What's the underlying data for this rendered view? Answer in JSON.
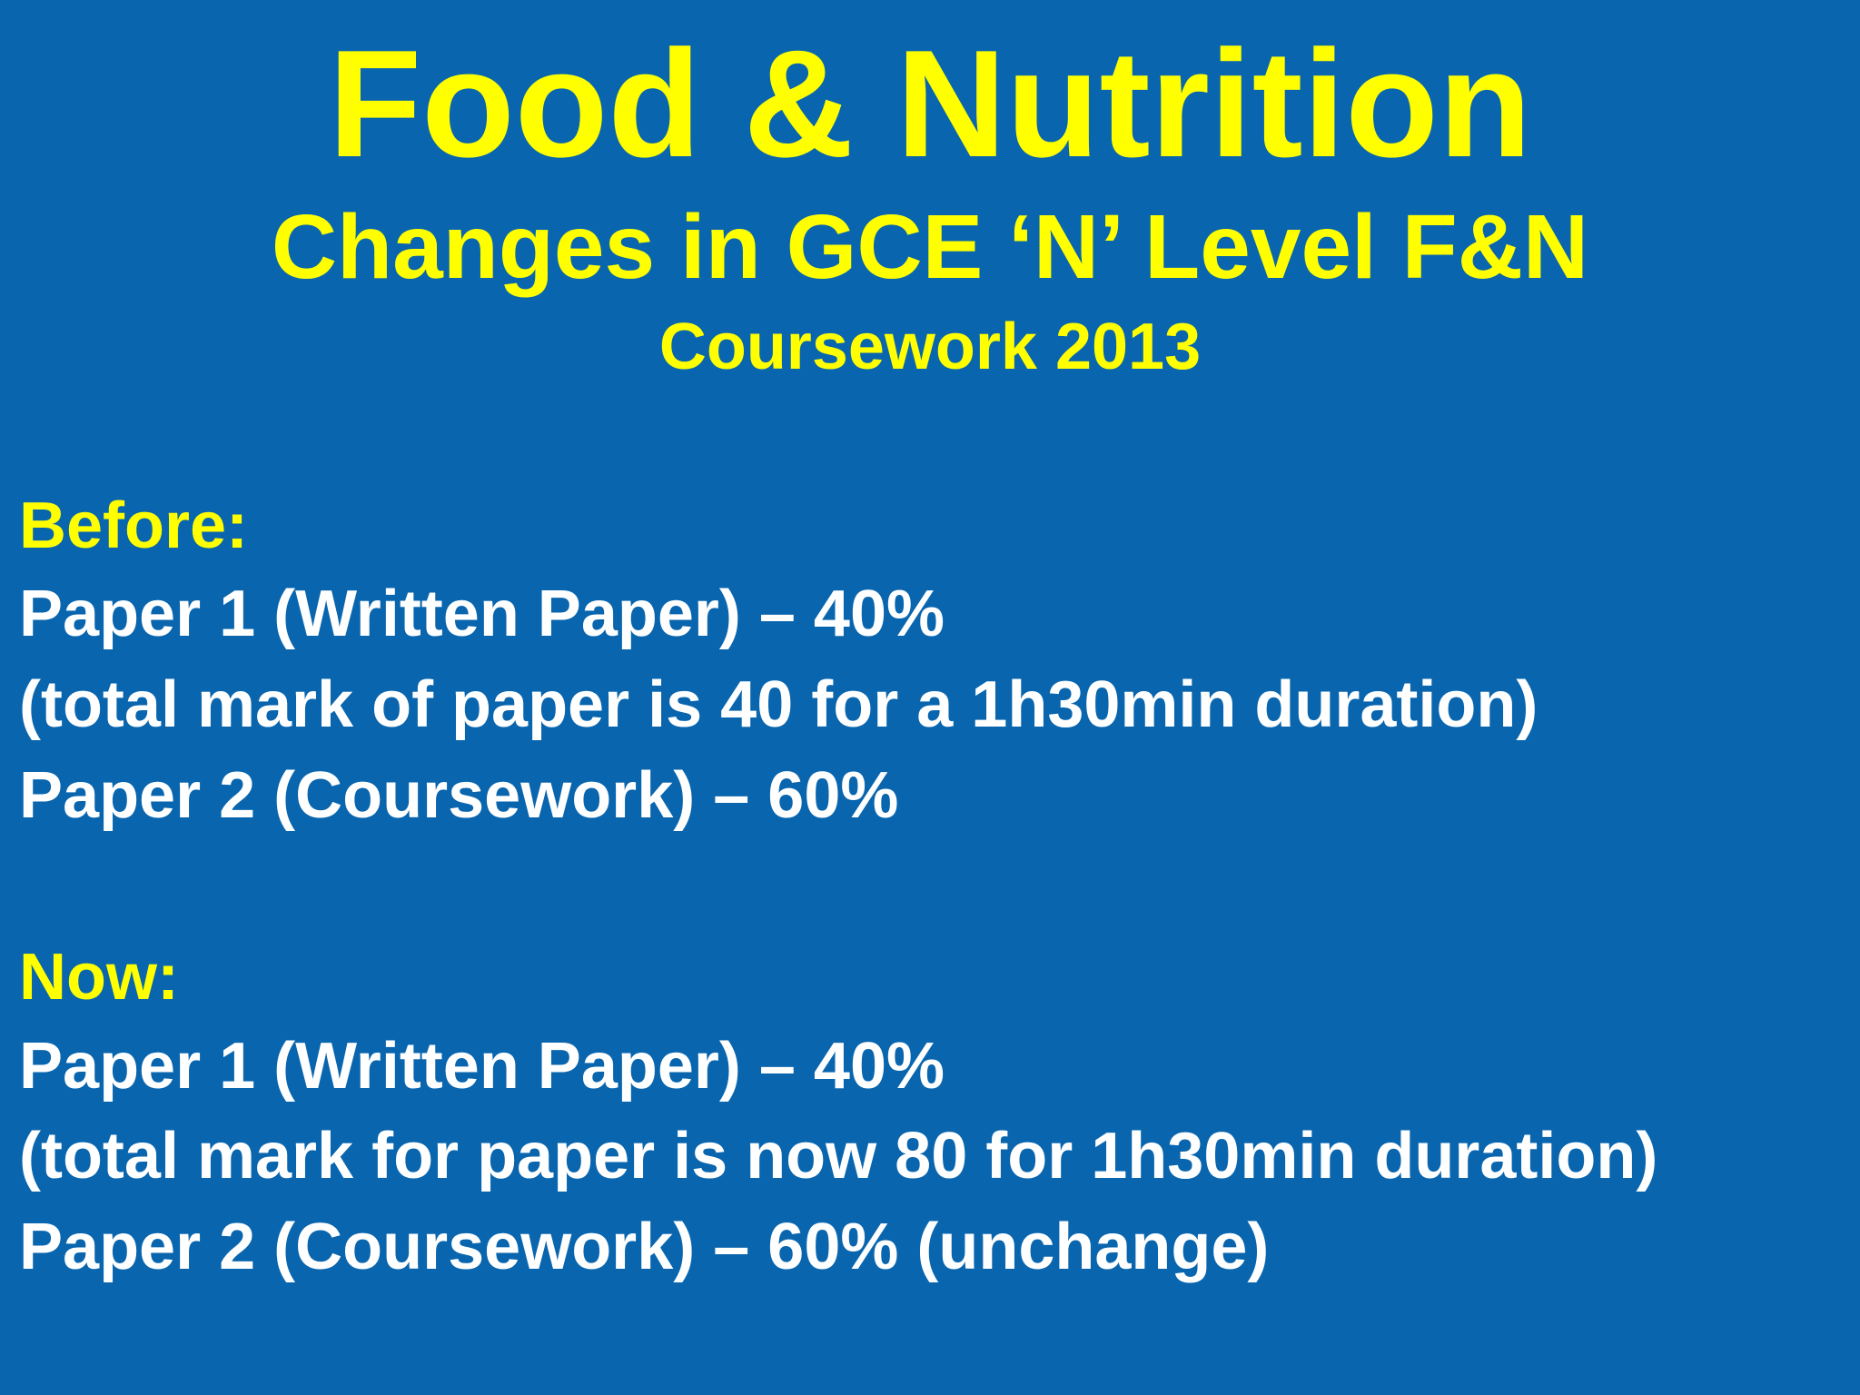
{
  "slide": {
    "title": "Food & Nutrition",
    "subtitle": "Changes in GCE ‘N’ Level F&N",
    "subtitle_line2": "Coursework 2013",
    "before": {
      "heading": "Before:",
      "lines": [
        "Paper 1 (Written Paper) – 40%",
        "(total mark of paper is 40 for a 1h30min duration)",
        "Paper 2 (Coursework) – 60%"
      ]
    },
    "now": {
      "heading": "Now:",
      "lines": [
        "Paper 1 (Written Paper) – 40%",
        "(total mark for paper is now 80 for 1h30min duration)",
        "Paper 2 (Coursework) – 60% (unchange)"
      ]
    }
  },
  "colors": {
    "background": "#0865ae",
    "heading": "#ffff00",
    "body_text": "#ffffff"
  }
}
